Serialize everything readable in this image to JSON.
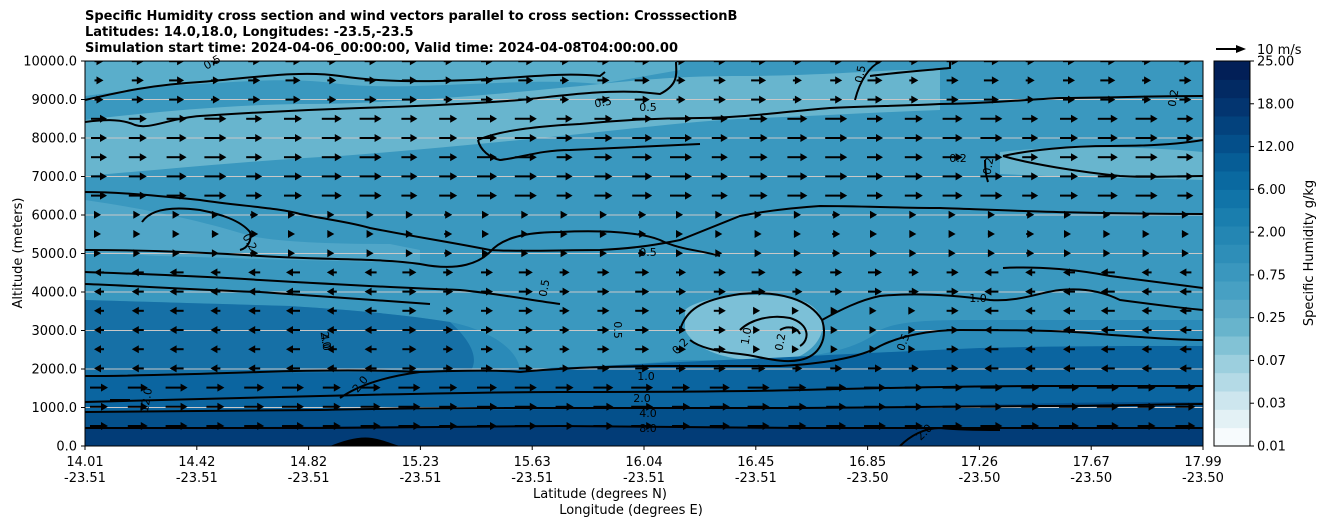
{
  "title": {
    "line1": "Specific Humidity cross section and wind vectors parallel to cross section: CrosssectionB",
    "line2": "Latitudes: 14.0,18.0, Longitudes: -23.5,-23.5",
    "line3": "Simulation start time: 2024-04-06_00:00:00, Valid time: 2024-04-08T04:00:00.00"
  },
  "chart_data": {
    "type": "heatmap",
    "subtype": "filled contour cross section with contour lines and wind vectors",
    "ylabel": "Altitude (meters)",
    "xlabel_line1": "Latitude (degrees N)",
    "xlabel_line2": "Longitude (degrees E)",
    "ylim": [
      0,
      10000
    ],
    "y_ticks": [
      "0.0",
      "1000.0",
      "2000.0",
      "3000.0",
      "4000.0",
      "5000.0",
      "6000.0",
      "7000.0",
      "8000.0",
      "9000.0",
      "10000.0"
    ],
    "x_ticks": [
      {
        "lat": "14.01",
        "lon": "-23.51"
      },
      {
        "lat": "14.42",
        "lon": "-23.51"
      },
      {
        "lat": "14.82",
        "lon": "-23.51"
      },
      {
        "lat": "15.23",
        "lon": "-23.51"
      },
      {
        "lat": "15.63",
        "lon": "-23.51"
      },
      {
        "lat": "16.04",
        "lon": "-23.51"
      },
      {
        "lat": "16.45",
        "lon": "-23.51"
      },
      {
        "lat": "16.85",
        "lon": "-23.50"
      },
      {
        "lat": "17.26",
        "lon": "-23.50"
      },
      {
        "lat": "17.67",
        "lon": "-23.50"
      },
      {
        "lat": "17.99",
        "lon": "-23.50"
      }
    ],
    "grid": "horizontal",
    "colorbar": {
      "label": "Specific Humidity g/kg",
      "ticks": [
        "0.01",
        "0.03",
        "0.07",
        "0.25",
        "0.75",
        "2.00",
        "6.00",
        "12.00",
        "18.00",
        "25.00"
      ],
      "colors": [
        "#f7fbfd",
        "#e3f1f5",
        "#cde6ee",
        "#b4dae6",
        "#9ccfde",
        "#82c2d5",
        "#68b4cc",
        "#58a9c7",
        "#47a0c3",
        "#3a97be",
        "#2e8eb8",
        "#2486b3",
        "#1a7eae",
        "#1174a8",
        "#0a69a0",
        "#065d96",
        "#044f8a",
        "#03427d",
        "#033570",
        "#022a63",
        "#021f57"
      ]
    },
    "wind_reference": "10 m/s",
    "contour_labels": [
      "0.5",
      "0.5",
      "0.5",
      "0.5",
      "0.2",
      "0.2",
      "0.2",
      "0.2",
      "0.5",
      "0.5",
      "0.5",
      "0.2",
      "1.0",
      "0.2",
      "1.0",
      "0.5",
      "4.0",
      "2.0",
      "1.0",
      "2.0",
      "4.0",
      "8.0",
      "12.0",
      "2.0",
      "2.0"
    ],
    "levels_note": "contours at 0.2, 0.5, 1.0, 2.0, 4.0, 8.0, 12.0 g/kg"
  }
}
